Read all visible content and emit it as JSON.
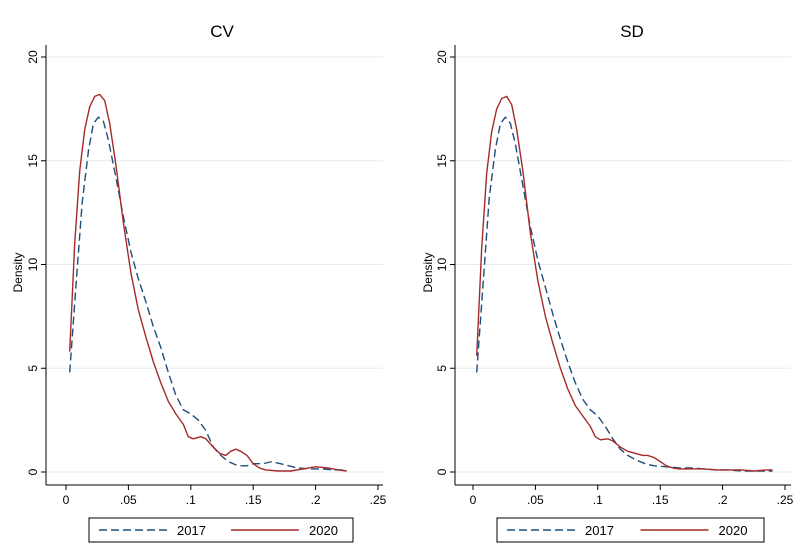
{
  "chart_data": [
    {
      "type": "line",
      "title": "CV",
      "xlabel": "",
      "ylabel": "Density",
      "xlim": [
        0,
        0.25
      ],
      "ylim": [
        0,
        20
      ],
      "xticks": [
        {
          "value": 0,
          "label": "0"
        },
        {
          "value": 0.05,
          "label": ".05"
        },
        {
          "value": 0.1,
          "label": ".1"
        },
        {
          "value": 0.15,
          "label": ".15"
        },
        {
          "value": 0.2,
          "label": ".2"
        },
        {
          "value": 0.25,
          "label": ".25"
        }
      ],
      "yticks": [
        {
          "value": 0,
          "label": "0"
        },
        {
          "value": 5,
          "label": "5"
        },
        {
          "value": 10,
          "label": "10"
        },
        {
          "value": 15,
          "label": "15"
        },
        {
          "value": 20,
          "label": "20"
        }
      ],
      "grid": "horizontal",
      "legend_position": "bottom",
      "series": [
        {
          "name": "2017",
          "color": "#1f4e79",
          "dash": "dashed",
          "points": [
            [
              0.003,
              4.8
            ],
            [
              0.008,
              9.0
            ],
            [
              0.013,
              13.0
            ],
            [
              0.018,
              15.5
            ],
            [
              0.022,
              16.8
            ],
            [
              0.026,
              17.1
            ],
            [
              0.03,
              16.9
            ],
            [
              0.034,
              16.0
            ],
            [
              0.04,
              14.2
            ],
            [
              0.046,
              12.3
            ],
            [
              0.052,
              10.6
            ],
            [
              0.058,
              9.3
            ],
            [
              0.064,
              8.2
            ],
            [
              0.07,
              7.0
            ],
            [
              0.076,
              6.0
            ],
            [
              0.082,
              4.8
            ],
            [
              0.088,
              3.7
            ],
            [
              0.094,
              3.0
            ],
            [
              0.1,
              2.8
            ],
            [
              0.106,
              2.5
            ],
            [
              0.112,
              2.0
            ],
            [
              0.118,
              1.2
            ],
            [
              0.124,
              0.8
            ],
            [
              0.13,
              0.5
            ],
            [
              0.138,
              0.3
            ],
            [
              0.145,
              0.3
            ],
            [
              0.15,
              0.4
            ],
            [
              0.158,
              0.4
            ],
            [
              0.165,
              0.5
            ],
            [
              0.175,
              0.35
            ],
            [
              0.185,
              0.2
            ],
            [
              0.195,
              0.15
            ],
            [
              0.205,
              0.15
            ],
            [
              0.215,
              0.1
            ],
            [
              0.225,
              0.1
            ]
          ]
        },
        {
          "name": "2020",
          "color": "#a52a2a",
          "dash": "solid",
          "points": [
            [
              0.003,
              5.8
            ],
            [
              0.007,
              11.0
            ],
            [
              0.011,
              14.5
            ],
            [
              0.015,
              16.5
            ],
            [
              0.019,
              17.6
            ],
            [
              0.023,
              18.1
            ],
            [
              0.027,
              18.2
            ],
            [
              0.031,
              17.9
            ],
            [
              0.035,
              16.8
            ],
            [
              0.04,
              14.8
            ],
            [
              0.046,
              12.0
            ],
            [
              0.052,
              9.6
            ],
            [
              0.058,
              7.8
            ],
            [
              0.064,
              6.5
            ],
            [
              0.07,
              5.3
            ],
            [
              0.076,
              4.3
            ],
            [
              0.082,
              3.4
            ],
            [
              0.088,
              2.8
            ],
            [
              0.094,
              2.3
            ],
            [
              0.098,
              1.7
            ],
            [
              0.102,
              1.6
            ],
            [
              0.108,
              1.7
            ],
            [
              0.112,
              1.6
            ],
            [
              0.118,
              1.2
            ],
            [
              0.123,
              0.9
            ],
            [
              0.128,
              0.8
            ],
            [
              0.132,
              1.0
            ],
            [
              0.136,
              1.1
            ],
            [
              0.14,
              1.0
            ],
            [
              0.145,
              0.8
            ],
            [
              0.15,
              0.4
            ],
            [
              0.155,
              0.2
            ],
            [
              0.16,
              0.1
            ],
            [
              0.17,
              0.05
            ],
            [
              0.18,
              0.05
            ],
            [
              0.19,
              0.15
            ],
            [
              0.2,
              0.25
            ],
            [
              0.21,
              0.2
            ],
            [
              0.218,
              0.1
            ],
            [
              0.225,
              0.05
            ]
          ]
        }
      ]
    },
    {
      "type": "line",
      "title": "SD",
      "xlabel": "",
      "ylabel": "Density",
      "xlim": [
        0,
        0.25
      ],
      "ylim": [
        0,
        20
      ],
      "xticks": [
        {
          "value": 0,
          "label": "0"
        },
        {
          "value": 0.05,
          "label": ".05"
        },
        {
          "value": 0.1,
          "label": ".1"
        },
        {
          "value": 0.15,
          "label": ".15"
        },
        {
          "value": 0.2,
          "label": ".2"
        },
        {
          "value": 0.25,
          "label": ".25"
        }
      ],
      "yticks": [
        {
          "value": 0,
          "label": "0"
        },
        {
          "value": 5,
          "label": "5"
        },
        {
          "value": 10,
          "label": "10"
        },
        {
          "value": 15,
          "label": "15"
        },
        {
          "value": 20,
          "label": "20"
        }
      ],
      "grid": "horizontal",
      "legend_position": "bottom",
      "series": [
        {
          "name": "2017",
          "color": "#1f4e79",
          "dash": "dashed",
          "points": [
            [
              0.003,
              4.8
            ],
            [
              0.008,
              9.0
            ],
            [
              0.013,
              13.2
            ],
            [
              0.018,
              15.6
            ],
            [
              0.022,
              16.8
            ],
            [
              0.026,
              17.1
            ],
            [
              0.03,
              16.8
            ],
            [
              0.034,
              15.8
            ],
            [
              0.04,
              13.8
            ],
            [
              0.046,
              11.8
            ],
            [
              0.052,
              10.2
            ],
            [
              0.058,
              8.9
            ],
            [
              0.064,
              7.6
            ],
            [
              0.07,
              6.4
            ],
            [
              0.076,
              5.3
            ],
            [
              0.082,
              4.3
            ],
            [
              0.088,
              3.5
            ],
            [
              0.094,
              3.0
            ],
            [
              0.1,
              2.7
            ],
            [
              0.106,
              2.2
            ],
            [
              0.112,
              1.6
            ],
            [
              0.118,
              1.1
            ],
            [
              0.124,
              0.8
            ],
            [
              0.13,
              0.6
            ],
            [
              0.138,
              0.4
            ],
            [
              0.145,
              0.3
            ],
            [
              0.155,
              0.25
            ],
            [
              0.165,
              0.2
            ],
            [
              0.175,
              0.2
            ],
            [
              0.185,
              0.15
            ],
            [
              0.195,
              0.1
            ],
            [
              0.205,
              0.1
            ],
            [
              0.215,
              0.05
            ],
            [
              0.225,
              0.05
            ],
            [
              0.235,
              0.05
            ],
            [
              0.24,
              0.05
            ]
          ]
        },
        {
          "name": "2020",
          "color": "#a52a2a",
          "dash": "solid",
          "points": [
            [
              0.003,
              5.6
            ],
            [
              0.007,
              10.8
            ],
            [
              0.011,
              14.4
            ],
            [
              0.015,
              16.4
            ],
            [
              0.019,
              17.5
            ],
            [
              0.023,
              18.0
            ],
            [
              0.027,
              18.1
            ],
            [
              0.031,
              17.7
            ],
            [
              0.035,
              16.5
            ],
            [
              0.04,
              14.5
            ],
            [
              0.046,
              11.5
            ],
            [
              0.052,
              9.2
            ],
            [
              0.058,
              7.5
            ],
            [
              0.064,
              6.2
            ],
            [
              0.07,
              5.0
            ],
            [
              0.076,
              4.0
            ],
            [
              0.082,
              3.2
            ],
            [
              0.088,
              2.7
            ],
            [
              0.094,
              2.2
            ],
            [
              0.098,
              1.7
            ],
            [
              0.102,
              1.55
            ],
            [
              0.108,
              1.6
            ],
            [
              0.112,
              1.5
            ],
            [
              0.118,
              1.2
            ],
            [
              0.124,
              1.0
            ],
            [
              0.13,
              0.9
            ],
            [
              0.136,
              0.8
            ],
            [
              0.14,
              0.8
            ],
            [
              0.145,
              0.7
            ],
            [
              0.15,
              0.5
            ],
            [
              0.155,
              0.3
            ],
            [
              0.16,
              0.2
            ],
            [
              0.165,
              0.15
            ],
            [
              0.175,
              0.15
            ],
            [
              0.185,
              0.15
            ],
            [
              0.195,
              0.1
            ],
            [
              0.205,
              0.1
            ],
            [
              0.215,
              0.1
            ],
            [
              0.225,
              0.05
            ],
            [
              0.235,
              0.1
            ],
            [
              0.24,
              0.1
            ]
          ]
        }
      ]
    }
  ]
}
